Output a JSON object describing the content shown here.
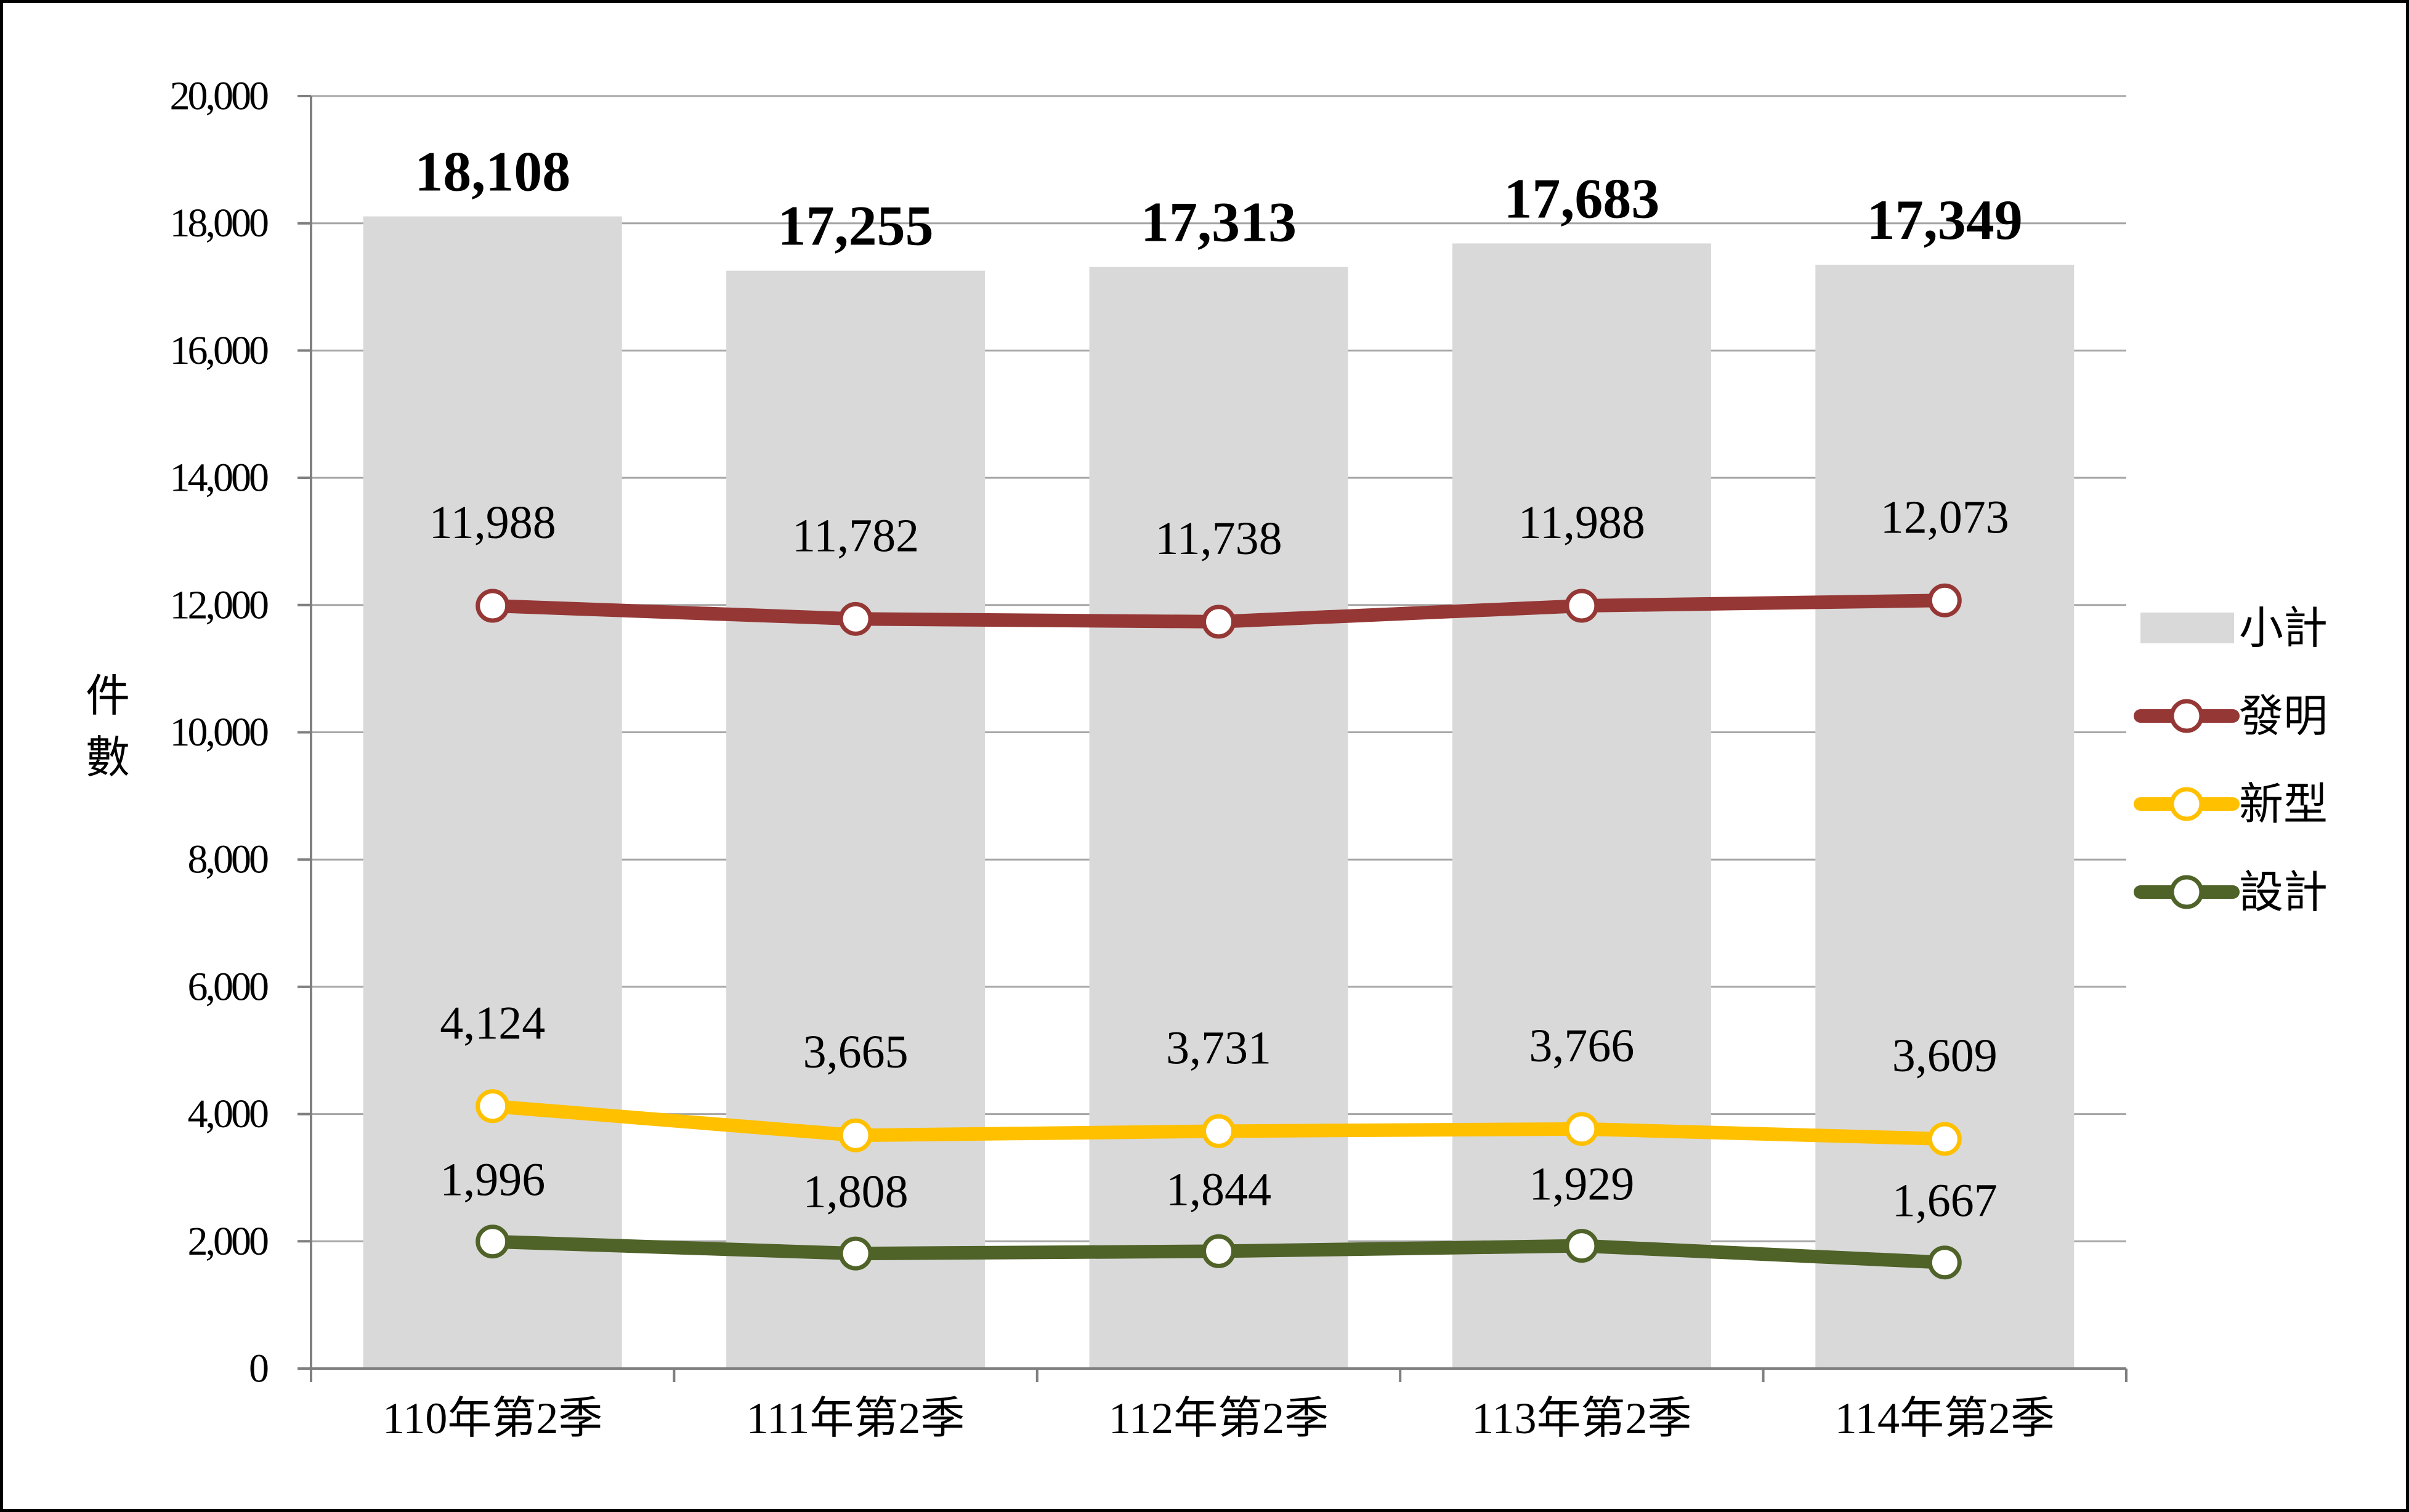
{
  "chart_data": {
    "type": "bar",
    "title": "",
    "xlabel": "",
    "ylabel": "件數",
    "ylim": [
      0,
      20000
    ],
    "yticks": [
      0,
      2000,
      4000,
      6000,
      8000,
      10000,
      12000,
      14000,
      16000,
      18000,
      20000
    ],
    "ytick_labels": [
      "0",
      "2,000",
      "4,000",
      "6,000",
      "8,000",
      "10,000",
      "12,000",
      "14,000",
      "16,000",
      "18,000",
      "20,000"
    ],
    "grid": true,
    "legend_position": "right",
    "categories": [
      "110年第2季",
      "111年第2季",
      "112年第2季",
      "113年第2季",
      "114年第2季"
    ],
    "series": [
      {
        "name": "小計",
        "kind": "bar",
        "color": "#d9d9d9",
        "values": [
          18108,
          17255,
          17313,
          17683,
          17349
        ],
        "labels": [
          "18,108",
          "17,255",
          "17,313",
          "17,683",
          "17,349"
        ]
      },
      {
        "name": "發明",
        "kind": "line",
        "color": "#953735",
        "values": [
          11988,
          11782,
          11738,
          11988,
          12073
        ],
        "labels": [
          "11,988",
          "11,782",
          "11,738",
          "11,988",
          "12,073"
        ]
      },
      {
        "name": "新型",
        "kind": "line",
        "color": "#ffc000",
        "values": [
          4124,
          3665,
          3731,
          3766,
          3609
        ],
        "labels": [
          "4,124",
          "3,665",
          "3,731",
          "3,766",
          "3,609"
        ]
      },
      {
        "name": "設計",
        "kind": "line",
        "color": "#4f6228",
        "values": [
          1996,
          1808,
          1844,
          1929,
          1667
        ],
        "labels": [
          "1,996",
          "1,808",
          "1,844",
          "1,929",
          "1,667"
        ]
      }
    ]
  }
}
